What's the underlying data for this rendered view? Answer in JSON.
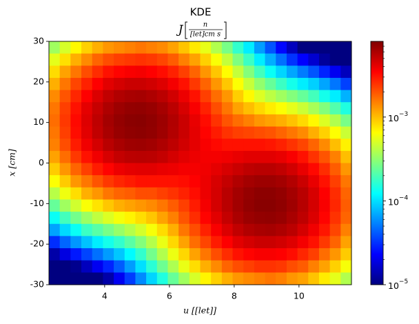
{
  "chart_data": {
    "type": "heatmap",
    "title": "KDE",
    "subtitle_symbol": "J",
    "subtitle_numerator": "n",
    "subtitle_denominator": "[let]cm s",
    "x_label": "u [[let]]",
    "y_label": "x [cm]",
    "xlim": [
      2.28,
      11.62
    ],
    "ylim": [
      -30,
      30
    ],
    "xticks": [
      4,
      6,
      8,
      10
    ],
    "yticks": [
      -30,
      -20,
      -10,
      0,
      10,
      20,
      30
    ],
    "colormap": "jet",
    "color_scale": "log",
    "clim": [
      1e-05,
      0.008
    ],
    "cticks": [
      {
        "value": 1e-05,
        "label": "10",
        "exponent": "−5"
      },
      {
        "value": 0.0001,
        "label": "10",
        "exponent": "−4"
      },
      {
        "value": 0.001,
        "label": "10",
        "exponent": "−3"
      }
    ],
    "cticks_minor": [
      2e-05,
      3e-05,
      4e-05,
      5e-05,
      6e-05,
      7e-05,
      8e-05,
      9e-05,
      0.0002,
      0.0003,
      0.0004,
      0.0005,
      0.0006,
      0.0007,
      0.0008,
      0.0009,
      0.002,
      0.003,
      0.004,
      0.005,
      0.006,
      0.007
    ],
    "z": [
      [
        0.00035,
        0.0005,
        0.00068,
        0.00089,
        0.0011,
        0.0013,
        0.0014,
        0.0015,
        0.0016,
        0.0015,
        0.0014,
        0.0012,
        0.00096,
        0.00075,
        0.00056,
        0.00039,
        0.00027,
        0.00017,
        0.00011,
        6.5e-05,
        4e-05,
        2.4e-05,
        1.5e-05,
        9.8e-06,
        6.7e-06,
        4.6e-06,
        3.2e-06,
        2.2e-06
      ],
      [
        0.00055,
        0.0008,
        0.0011,
        0.0014,
        0.0018,
        0.0021,
        0.0023,
        0.0024,
        0.0025,
        0.0024,
        0.0022,
        0.0019,
        0.0015,
        0.0012,
        0.00089,
        0.00063,
        0.00044,
        0.00028,
        0.00018,
        0.00011,
        7.2e-05,
        4.8e-05,
        3.2e-05,
        2.3e-05,
        1.7e-05,
        1.2e-05,
        8.6e-06,
        5.9e-06
      ],
      [
        0.00082,
        0.0012,
        0.0016,
        0.0021,
        0.0026,
        0.0031,
        0.0034,
        0.0036,
        0.0037,
        0.0035,
        0.0032,
        0.0028,
        0.0023,
        0.0018,
        0.0013,
        0.00095,
        0.00066,
        0.00044,
        0.00029,
        0.00019,
        0.00013,
        9.4e-05,
        6.9e-05,
        5.2e-05,
        4e-05,
        2.9e-05,
        2.1e-05,
        1.5e-05
      ],
      [
        0.0011,
        0.0016,
        0.0022,
        0.0028,
        0.0035,
        0.0042,
        0.0046,
        0.0049,
        0.0049,
        0.0047,
        0.0043,
        0.0037,
        0.0031,
        0.0024,
        0.0018,
        0.0013,
        0.00094,
        0.00064,
        0.00045,
        0.00032,
        0.00024,
        0.00018,
        0.00014,
        0.00011,
        9e-05,
        6.8e-05,
        5e-05,
        3.5e-05
      ],
      [
        0.0014,
        0.002,
        0.0027,
        0.0035,
        0.0044,
        0.0052,
        0.0058,
        0.0061,
        0.0062,
        0.0059,
        0.0054,
        0.0047,
        0.0039,
        0.0031,
        0.0023,
        0.0017,
        0.0013,
        0.0009,
        0.00068,
        0.00052,
        0.00042,
        0.00035,
        0.00029,
        0.00024,
        0.00019,
        0.00014,
        0.00011,
        7.4e-05
      ],
      [
        0.0016,
        0.0023,
        0.0031,
        0.0041,
        0.005,
        0.0059,
        0.0066,
        0.007,
        0.0071,
        0.0068,
        0.0062,
        0.0054,
        0.0045,
        0.0036,
        0.0028,
        0.0021,
        0.0016,
        0.0012,
        0.001,
        0.00084,
        0.00073,
        0.00064,
        0.00055,
        0.00046,
        0.00037,
        0.00029,
        0.00021,
        0.00015
      ],
      [
        0.0017,
        0.0024,
        0.0033,
        0.0043,
        0.0053,
        0.0063,
        0.007,
        0.0074,
        0.0075,
        0.0072,
        0.0066,
        0.0058,
        0.0049,
        0.004,
        0.0032,
        0.0025,
        0.002,
        0.0017,
        0.0015,
        0.0013,
        0.0012,
        0.0011,
        0.00097,
        0.00083,
        0.00068,
        0.00052,
        0.00039,
        0.00027
      ],
      [
        0.0016,
        0.0023,
        0.0032,
        0.0042,
        0.0052,
        0.0061,
        0.0068,
        0.0072,
        0.0073,
        0.0071,
        0.0065,
        0.0057,
        0.0049,
        0.0041,
        0.0034,
        0.0029,
        0.0025,
        0.0023,
        0.0022,
        0.0021,
        0.002,
        0.0018,
        0.0016,
        0.0014,
        0.0011,
        0.00088,
        0.00065,
        0.00046
      ],
      [
        0.0015,
        0.0021,
        0.0029,
        0.0038,
        0.0046,
        0.0055,
        0.0061,
        0.0065,
        0.0066,
        0.0064,
        0.0059,
        0.0053,
        0.0047,
        0.0041,
        0.0036,
        0.0033,
        0.0031,
        0.0031,
        0.0031,
        0.0031,
        0.003,
        0.0028,
        0.0025,
        0.0022,
        0.0018,
        0.0014,
        0.001,
        0.00071
      ],
      [
        0.0012,
        0.0017,
        0.0024,
        0.0031,
        0.0038,
        0.0045,
        0.0051,
        0.0054,
        0.0055,
        0.0054,
        0.0051,
        0.0046,
        0.0042,
        0.0039,
        0.0037,
        0.0037,
        0.0038,
        0.004,
        0.0042,
        0.0042,
        0.0042,
        0.004,
        0.0036,
        0.0031,
        0.0025,
        0.002,
        0.0015,
        0.001
      ],
      [
        0.00091,
        0.0013,
        0.0018,
        0.0023,
        0.0029,
        0.0034,
        0.0039,
        0.0041,
        0.0042,
        0.0042,
        0.004,
        0.0039,
        0.0037,
        0.0037,
        0.0038,
        0.0041,
        0.0045,
        0.0049,
        0.0053,
        0.0055,
        0.0055,
        0.0052,
        0.0047,
        0.004,
        0.0033,
        0.0026,
        0.0019,
        0.0013
      ],
      [
        0.00064,
        0.00092,
        0.0013,
        0.0016,
        0.002,
        0.0024,
        0.0027,
        0.0029,
        0.0031,
        0.0031,
        0.0031,
        0.0031,
        0.0032,
        0.0035,
        0.0039,
        0.0045,
        0.0051,
        0.0058,
        0.0063,
        0.0066,
        0.0066,
        0.0063,
        0.0057,
        0.0049,
        0.004,
        0.0031,
        0.0023,
        0.0016
      ],
      [
        0.00041,
        0.00059,
        0.00081,
        0.0011,
        0.0013,
        0.0016,
        0.0018,
        0.0019,
        0.0021,
        0.0021,
        0.0023,
        0.0025,
        0.0028,
        0.0032,
        0.0039,
        0.0046,
        0.0055,
        0.0063,
        0.0069,
        0.0073,
        0.0073,
        0.007,
        0.0063,
        0.0055,
        0.0045,
        0.0035,
        0.0026,
        0.0018
      ],
      [
        0.00024,
        0.00035,
        0.00048,
        0.00063,
        0.00078,
        0.00094,
        0.0011,
        0.0012,
        0.0013,
        0.0014,
        0.0016,
        0.0019,
        0.0023,
        0.0029,
        0.0037,
        0.0046,
        0.0055,
        0.0064,
        0.0071,
        0.0075,
        0.0075,
        0.0072,
        0.0065,
        0.0056,
        0.0046,
        0.0036,
        0.0027,
        0.0019
      ],
      [
        0.00013,
        0.00019,
        0.00026,
        0.00034,
        0.00043,
        0.00052,
        0.00061,
        0.0007,
        0.00081,
        0.00095,
        0.0012,
        0.0015,
        0.002,
        0.0026,
        0.0034,
        0.0042,
        0.0051,
        0.006,
        0.0067,
        0.007,
        0.0071,
        0.0068,
        0.0061,
        0.0053,
        0.0044,
        0.0034,
        0.0025,
        0.0018
      ],
      [
        6.7e-05,
        9.6e-05,
        0.00013,
        0.00018,
        0.00022,
        0.00027,
        0.00033,
        0.0004,
        0.00049,
        0.00062,
        0.00082,
        0.0011,
        0.0016,
        0.0021,
        0.0028,
        0.0036,
        0.0044,
        0.0052,
        0.0058,
        0.0061,
        0.0062,
        0.0059,
        0.0054,
        0.0046,
        0.0038,
        0.003,
        0.0022,
        0.0015
      ],
      [
        3.1e-05,
        4.5e-05,
        6.2e-05,
        8.3e-05,
        0.00011,
        0.00014,
        0.00017,
        0.00022,
        0.00029,
        0.0004,
        0.00057,
        0.00084,
        0.0012,
        0.0017,
        0.0022,
        0.0029,
        0.0035,
        0.0042,
        0.0046,
        0.0049,
        0.0049,
        0.0047,
        0.0043,
        0.0037,
        0.0031,
        0.0024,
        0.0018,
        0.0012
      ],
      [
        1.3e-05,
        1.9e-05,
        2.7e-05,
        3.6e-05,
        4.8e-05,
        6.4e-05,
        8.5e-05,
        0.00012,
        0.00017,
        0.00026,
        0.00039,
        0.00058,
        0.00085,
        0.0012,
        0.0016,
        0.0021,
        0.0026,
        0.0031,
        0.0034,
        0.0036,
        0.0036,
        0.0035,
        0.0032,
        0.0027,
        0.0023,
        0.0017,
        0.0013,
        0.00092
      ],
      [
        5.2e-06,
        7.6e-06,
        1.1e-05,
        1.5e-05,
        2.1e-05,
        2.9e-05,
        4.2e-05,
        6.4e-05,
        0.0001,
        0.00016,
        0.00025,
        0.00038,
        0.00057,
        0.00081,
        0.0011,
        0.0014,
        0.0018,
        0.0021,
        0.0023,
        0.0025,
        0.0025,
        0.0024,
        0.0021,
        0.0019,
        0.0015,
        0.0012,
        0.00088,
        0.00062
      ],
      [
        1.9e-06,
        2.8e-06,
        4.1e-06,
        6e-06,
        8.7e-06,
        1.3e-05,
        2.1e-05,
        3.4e-05,
        5.7e-05,
        9.3e-05,
        0.00015,
        0.00024,
        0.00035,
        0.0005,
        0.00069,
        0.00089,
        0.0011,
        0.0013,
        0.0014,
        0.0015,
        0.0016,
        0.0015,
        0.0013,
        0.0012,
        0.00096,
        0.00074,
        0.00055,
        0.00039
      ]
    ]
  }
}
